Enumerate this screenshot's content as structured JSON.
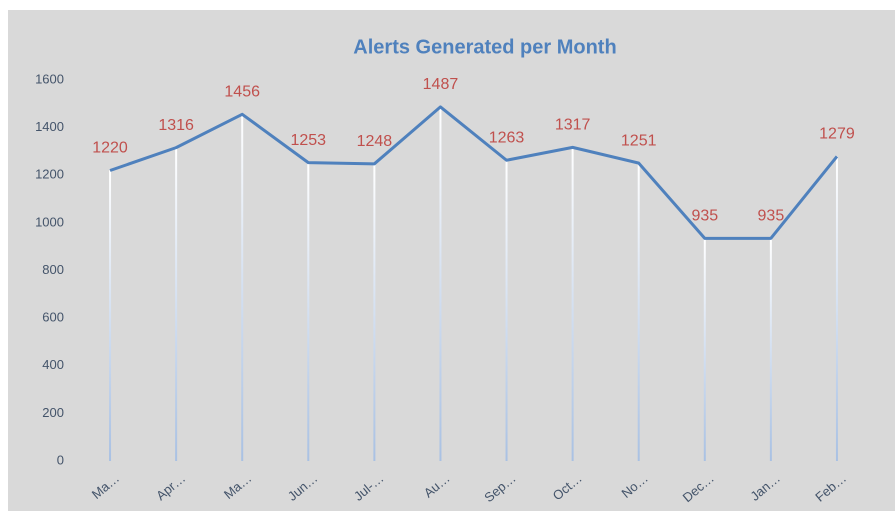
{
  "chart_data": {
    "type": "line",
    "title": "Alerts Generated per Month",
    "categories": [
      "Ma…",
      "Apr…",
      "Ma…",
      "Jun…",
      "Jul-…",
      "Au…",
      "Sep…",
      "Oct…",
      "No…",
      "Dec…",
      "Jan…",
      "Feb…"
    ],
    "values": [
      1220,
      1316,
      1456,
      1253,
      1248,
      1487,
      1263,
      1317,
      1251,
      935,
      935,
      1279
    ],
    "color": "#4f81bd",
    "ylim": [
      0,
      1600
    ],
    "yticks": [
      0,
      200,
      400,
      600,
      800,
      1000,
      1200,
      1400,
      1600
    ],
    "grid": false,
    "drop_lines": true
  }
}
